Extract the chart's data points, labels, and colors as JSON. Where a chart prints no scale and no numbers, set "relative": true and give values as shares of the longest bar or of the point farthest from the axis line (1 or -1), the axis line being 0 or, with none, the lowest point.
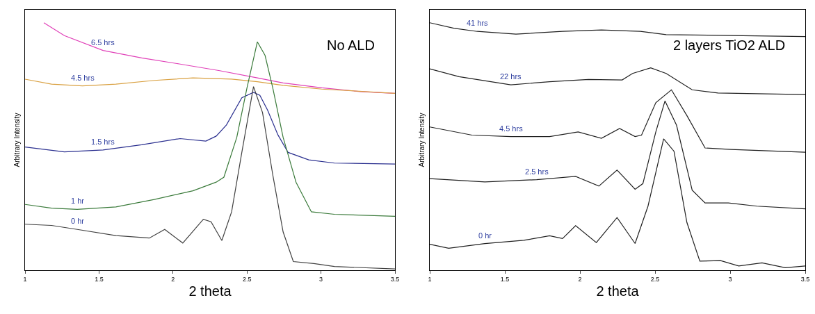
{
  "chart_data": [
    {
      "type": "line",
      "title": "No ALD",
      "xlabel": "2 theta",
      "ylabel": "Arbitrary Intensity",
      "relative": true,
      "xlim": [
        1,
        3.5
      ],
      "xticks": [
        1,
        1.5,
        2,
        2.5,
        3,
        3.5
      ],
      "series": [
        {
          "name": "6.5 hrs",
          "color": "#e040b8",
          "x": [
            1.127,
            1.266,
            1.527,
            1.788,
            2.048,
            2.309,
            2.57,
            2.744,
            3.005,
            3.265,
            3.5
          ],
          "values": [
            1.0,
            0.948,
            0.888,
            0.858,
            0.833,
            0.807,
            0.777,
            0.757,
            0.737,
            0.722,
            0.715
          ]
        },
        {
          "name": "4.5 hrs",
          "color": "#d9a040",
          "x": [
            1,
            1.179,
            1.388,
            1.614,
            1.874,
            2.135,
            2.396,
            2.57,
            2.744,
            3.005,
            3.5
          ],
          "values": [
            0.772,
            0.752,
            0.745,
            0.752,
            0.767,
            0.777,
            0.772,
            0.762,
            0.747,
            0.732,
            0.715
          ]
        },
        {
          "name": "1.5 hrs",
          "color": "#2a2f8f",
          "x": [
            1,
            1.266,
            1.527,
            1.788,
            2.048,
            2.222,
            2.292,
            2.361,
            2.465,
            2.544,
            2.587,
            2.639,
            2.709,
            2.778,
            2.917,
            3.091,
            3.5
          ],
          "values": [
            0.498,
            0.478,
            0.486,
            0.507,
            0.532,
            0.522,
            0.542,
            0.587,
            0.697,
            0.719,
            0.707,
            0.647,
            0.547,
            0.476,
            0.446,
            0.433,
            0.429
          ]
        },
        {
          "name": "1 hr",
          "color": "#3a7a3a",
          "x": [
            1,
            1.179,
            1.353,
            1.614,
            1.874,
            2.135,
            2.292,
            2.344,
            2.431,
            2.5,
            2.57,
            2.622,
            2.674,
            2.744,
            2.831,
            2.935,
            3.091,
            3.5
          ],
          "values": [
            0.266,
            0.251,
            0.246,
            0.256,
            0.286,
            0.321,
            0.356,
            0.376,
            0.537,
            0.737,
            0.923,
            0.868,
            0.737,
            0.537,
            0.356,
            0.236,
            0.226,
            0.218
          ]
        },
        {
          "name": "0 hr",
          "color": "#404040",
          "x": [
            1,
            1.179,
            1.353,
            1.614,
            1.84,
            1.944,
            2.066,
            2.205,
            2.257,
            2.33,
            2.396,
            2.465,
            2.544,
            2.605,
            2.674,
            2.744,
            2.813,
            2.952,
            3.091,
            3.5
          ],
          "values": [
            0.186,
            0.181,
            0.165,
            0.14,
            0.13,
            0.165,
            0.11,
            0.206,
            0.196,
            0.12,
            0.236,
            0.476,
            0.742,
            0.637,
            0.386,
            0.155,
            0.035,
            0.027,
            0.015,
            0.005
          ]
        }
      ]
    },
    {
      "type": "line",
      "title": "2 layers TiO2 ALD",
      "xlabel": "2 theta",
      "ylabel": "Arbitrary Intensity",
      "relative": true,
      "xlim": [
        1,
        3.5
      ],
      "xticks": [
        1,
        1.5,
        2,
        2.5,
        3,
        3.5
      ],
      "series": [
        {
          "name": "41 hrs",
          "color": "#202020",
          "x": [
            1,
            1.16,
            1.316,
            1.574,
            1.884,
            2.143,
            2.402,
            2.574,
            2.919,
            3.5
          ],
          "values": [
            1.0,
            0.978,
            0.965,
            0.954,
            0.965,
            0.971,
            0.965,
            0.952,
            0.949,
            0.944
          ]
        },
        {
          "name": "22 hrs",
          "color": "#202020",
          "x": [
            1,
            1.195,
            1.54,
            1.798,
            2.057,
            2.281,
            2.35,
            2.471,
            2.574,
            2.747,
            2.919,
            3.5
          ],
          "values": [
            0.814,
            0.782,
            0.749,
            0.762,
            0.771,
            0.769,
            0.795,
            0.818,
            0.795,
            0.729,
            0.716,
            0.71
          ]
        },
        {
          "name": "4.5 hrs",
          "color": "#202020",
          "x": [
            1,
            1.281,
            1.54,
            1.798,
            1.988,
            2.143,
            2.264,
            2.367,
            2.41,
            2.505,
            2.609,
            2.712,
            2.833,
            3.005,
            3.5
          ],
          "values": [
            0.579,
            0.546,
            0.54,
            0.54,
            0.559,
            0.533,
            0.573,
            0.54,
            0.546,
            0.677,
            0.729,
            0.625,
            0.494,
            0.488,
            0.477
          ]
        },
        {
          "name": "2.5 hrs",
          "color": "#202020",
          "x": [
            1,
            1.367,
            1.712,
            1.971,
            2.126,
            2.247,
            2.367,
            2.419,
            2.505,
            2.566,
            2.643,
            2.747,
            2.833,
            2.988,
            3.178,
            3.5
          ],
          "values": [
            0.37,
            0.357,
            0.366,
            0.379,
            0.34,
            0.405,
            0.327,
            0.35,
            0.559,
            0.684,
            0.586,
            0.324,
            0.272,
            0.272,
            0.259,
            0.248
          ]
        },
        {
          "name": "0 hr",
          "color": "#202020",
          "x": [
            1,
            1.126,
            1.367,
            1.626,
            1.798,
            1.884,
            1.971,
            2.109,
            2.247,
            2.367,
            2.453,
            2.557,
            2.626,
            2.712,
            2.798,
            2.936,
            3.057,
            3.212,
            3.367,
            3.5
          ],
          "values": [
            0.105,
            0.089,
            0.108,
            0.121,
            0.139,
            0.128,
            0.18,
            0.112,
            0.213,
            0.108,
            0.259,
            0.531,
            0.481,
            0.193,
            0.037,
            0.039,
            0.017,
            0.03,
            0.01,
            0.017
          ]
        }
      ]
    }
  ]
}
